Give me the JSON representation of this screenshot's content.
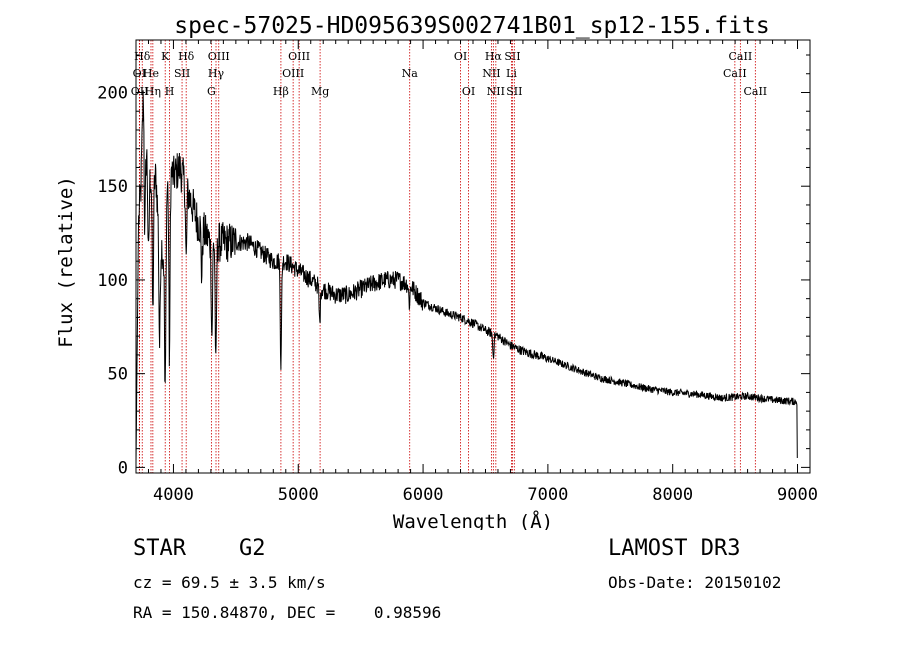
{
  "chart_data": {
    "type": "line",
    "title": "spec-57025-HD095639S002741B01_sp12-155.fits",
    "xlabel": "Wavelength (Å)",
    "ylabel": "Flux (relative)",
    "xlim": [
      3700,
      9100
    ],
    "ylim": [
      -3,
      228
    ],
    "xticks": [
      4000,
      5000,
      6000,
      7000,
      8000,
      9000
    ],
    "xtick_labels": [
      "4000",
      "5000",
      "6000",
      "7000",
      "8000",
      "9000"
    ],
    "yticks": [
      0,
      50,
      100,
      150,
      200
    ],
    "ytick_labels": [
      "0",
      "50",
      "100",
      "150",
      "200"
    ],
    "grid": false,
    "spectrum_anchors": {
      "wavelength": [
        3700,
        3720,
        3740,
        3760,
        3780,
        3800,
        3830,
        3860,
        3880,
        3900,
        3930,
        3950,
        3970,
        4000,
        4050,
        4100,
        4150,
        4200,
        4250,
        4300,
        4350,
        4400,
        4500,
        4600,
        4700,
        4800,
        4900,
        5000,
        5100,
        5200,
        5300,
        5400,
        5500,
        5600,
        5700,
        5800,
        5900,
        6000,
        6100,
        6200,
        6300,
        6400,
        6500,
        6600,
        6700,
        6800,
        7000,
        7200,
        7400,
        7600,
        7800,
        8000,
        8200,
        8400,
        8600,
        8800,
        9000
      ],
      "flux": [
        2,
        130,
        150,
        205,
        170,
        160,
        150,
        155,
        130,
        120,
        110,
        150,
        160,
        155,
        160,
        150,
        140,
        130,
        125,
        120,
        120,
        120,
        120,
        120,
        115,
        110,
        110,
        105,
        100,
        95,
        92,
        92,
        95,
        98,
        100,
        100,
        97,
        88,
        85,
        82,
        80,
        77,
        73,
        70,
        65,
        62,
        58,
        53,
        48,
        45,
        42,
        40,
        39,
        37,
        38,
        36,
        35
      ]
    },
    "absorption_features": [
      {
        "wavelength": 3770,
        "depth": 60
      },
      {
        "wavelength": 3800,
        "depth": 50
      },
      {
        "wavelength": 3835,
        "depth": 70
      },
      {
        "wavelength": 3889,
        "depth": 60
      },
      {
        "wavelength": 3934,
        "depth": 80
      },
      {
        "wavelength": 3968,
        "depth": 100
      },
      {
        "wavelength": 4102,
        "depth": 40
      },
      {
        "wavelength": 4227,
        "depth": 25
      },
      {
        "wavelength": 4308,
        "depth": 50
      },
      {
        "wavelength": 4340,
        "depth": 70
      },
      {
        "wavelength": 4861,
        "depth": 55
      },
      {
        "wavelength": 5172,
        "depth": 20
      },
      {
        "wavelength": 5890,
        "depth": 10
      },
      {
        "wavelength": 6563,
        "depth": 12
      }
    ],
    "spectral_lines": [
      {
        "name": "Hδ",
        "wavelength": 3750,
        "row": 0
      },
      {
        "name": "OI",
        "wavelength": 3727,
        "row": 1
      },
      {
        "name": "OII",
        "wavelength": 3729,
        "row": 2
      },
      {
        "name": "He",
        "wavelength": 3820,
        "row": 1
      },
      {
        "name": "Hη",
        "wavelength": 3835,
        "row": 2
      },
      {
        "name": "K",
        "wavelength": 3934,
        "row": 0
      },
      {
        "name": "H",
        "wavelength": 3969,
        "row": 2
      },
      {
        "name": "SII",
        "wavelength": 4069,
        "row": 1
      },
      {
        "name": "Hδ",
        "wavelength": 4102,
        "row": 0
      },
      {
        "name": "G",
        "wavelength": 4304,
        "row": 2
      },
      {
        "name": "OIII",
        "wavelength": 4363,
        "row": 0
      },
      {
        "name": "Hγ",
        "wavelength": 4341,
        "row": 1
      },
      {
        "name": "Hβ",
        "wavelength": 4861,
        "row": 2
      },
      {
        "name": "OIII",
        "wavelength": 4959,
        "row": 1
      },
      {
        "name": "OIII",
        "wavelength": 5007,
        "row": 0
      },
      {
        "name": "Mg",
        "wavelength": 5175,
        "row": 2
      },
      {
        "name": "Na",
        "wavelength": 5893,
        "row": 1
      },
      {
        "name": "OI",
        "wavelength": 6300,
        "row": 0
      },
      {
        "name": "OI",
        "wavelength": 6364,
        "row": 2
      },
      {
        "name": "NII",
        "wavelength": 6548,
        "row": 1
      },
      {
        "name": "NII",
        "wavelength": 6583,
        "row": 2
      },
      {
        "name": "Hα",
        "wavelength": 6563,
        "row": 0
      },
      {
        "name": "SII",
        "wavelength": 6716,
        "row": 0
      },
      {
        "name": "Li",
        "wavelength": 6708,
        "row": 1
      },
      {
        "name": "SII",
        "wavelength": 6731,
        "row": 2
      },
      {
        "name": "CaII",
        "wavelength": 8498,
        "row": 1
      },
      {
        "name": "CaII",
        "wavelength": 8542,
        "row": 0
      },
      {
        "name": "CaII",
        "wavelength": 8662,
        "row": 2
      }
    ]
  },
  "info": {
    "object_class": "STAR",
    "subclass": "G2",
    "cz": "cz = 69.5 ± 3.5 km/s",
    "ra_dec": "RA = 150.84870, DEC =    0.98596",
    "survey": "LAMOST DR3",
    "obs_date": "Obs-Date: 20150102"
  },
  "colors": {
    "spectrum": "#000000",
    "line_marker": "#cc0000",
    "axes": "#000000"
  }
}
